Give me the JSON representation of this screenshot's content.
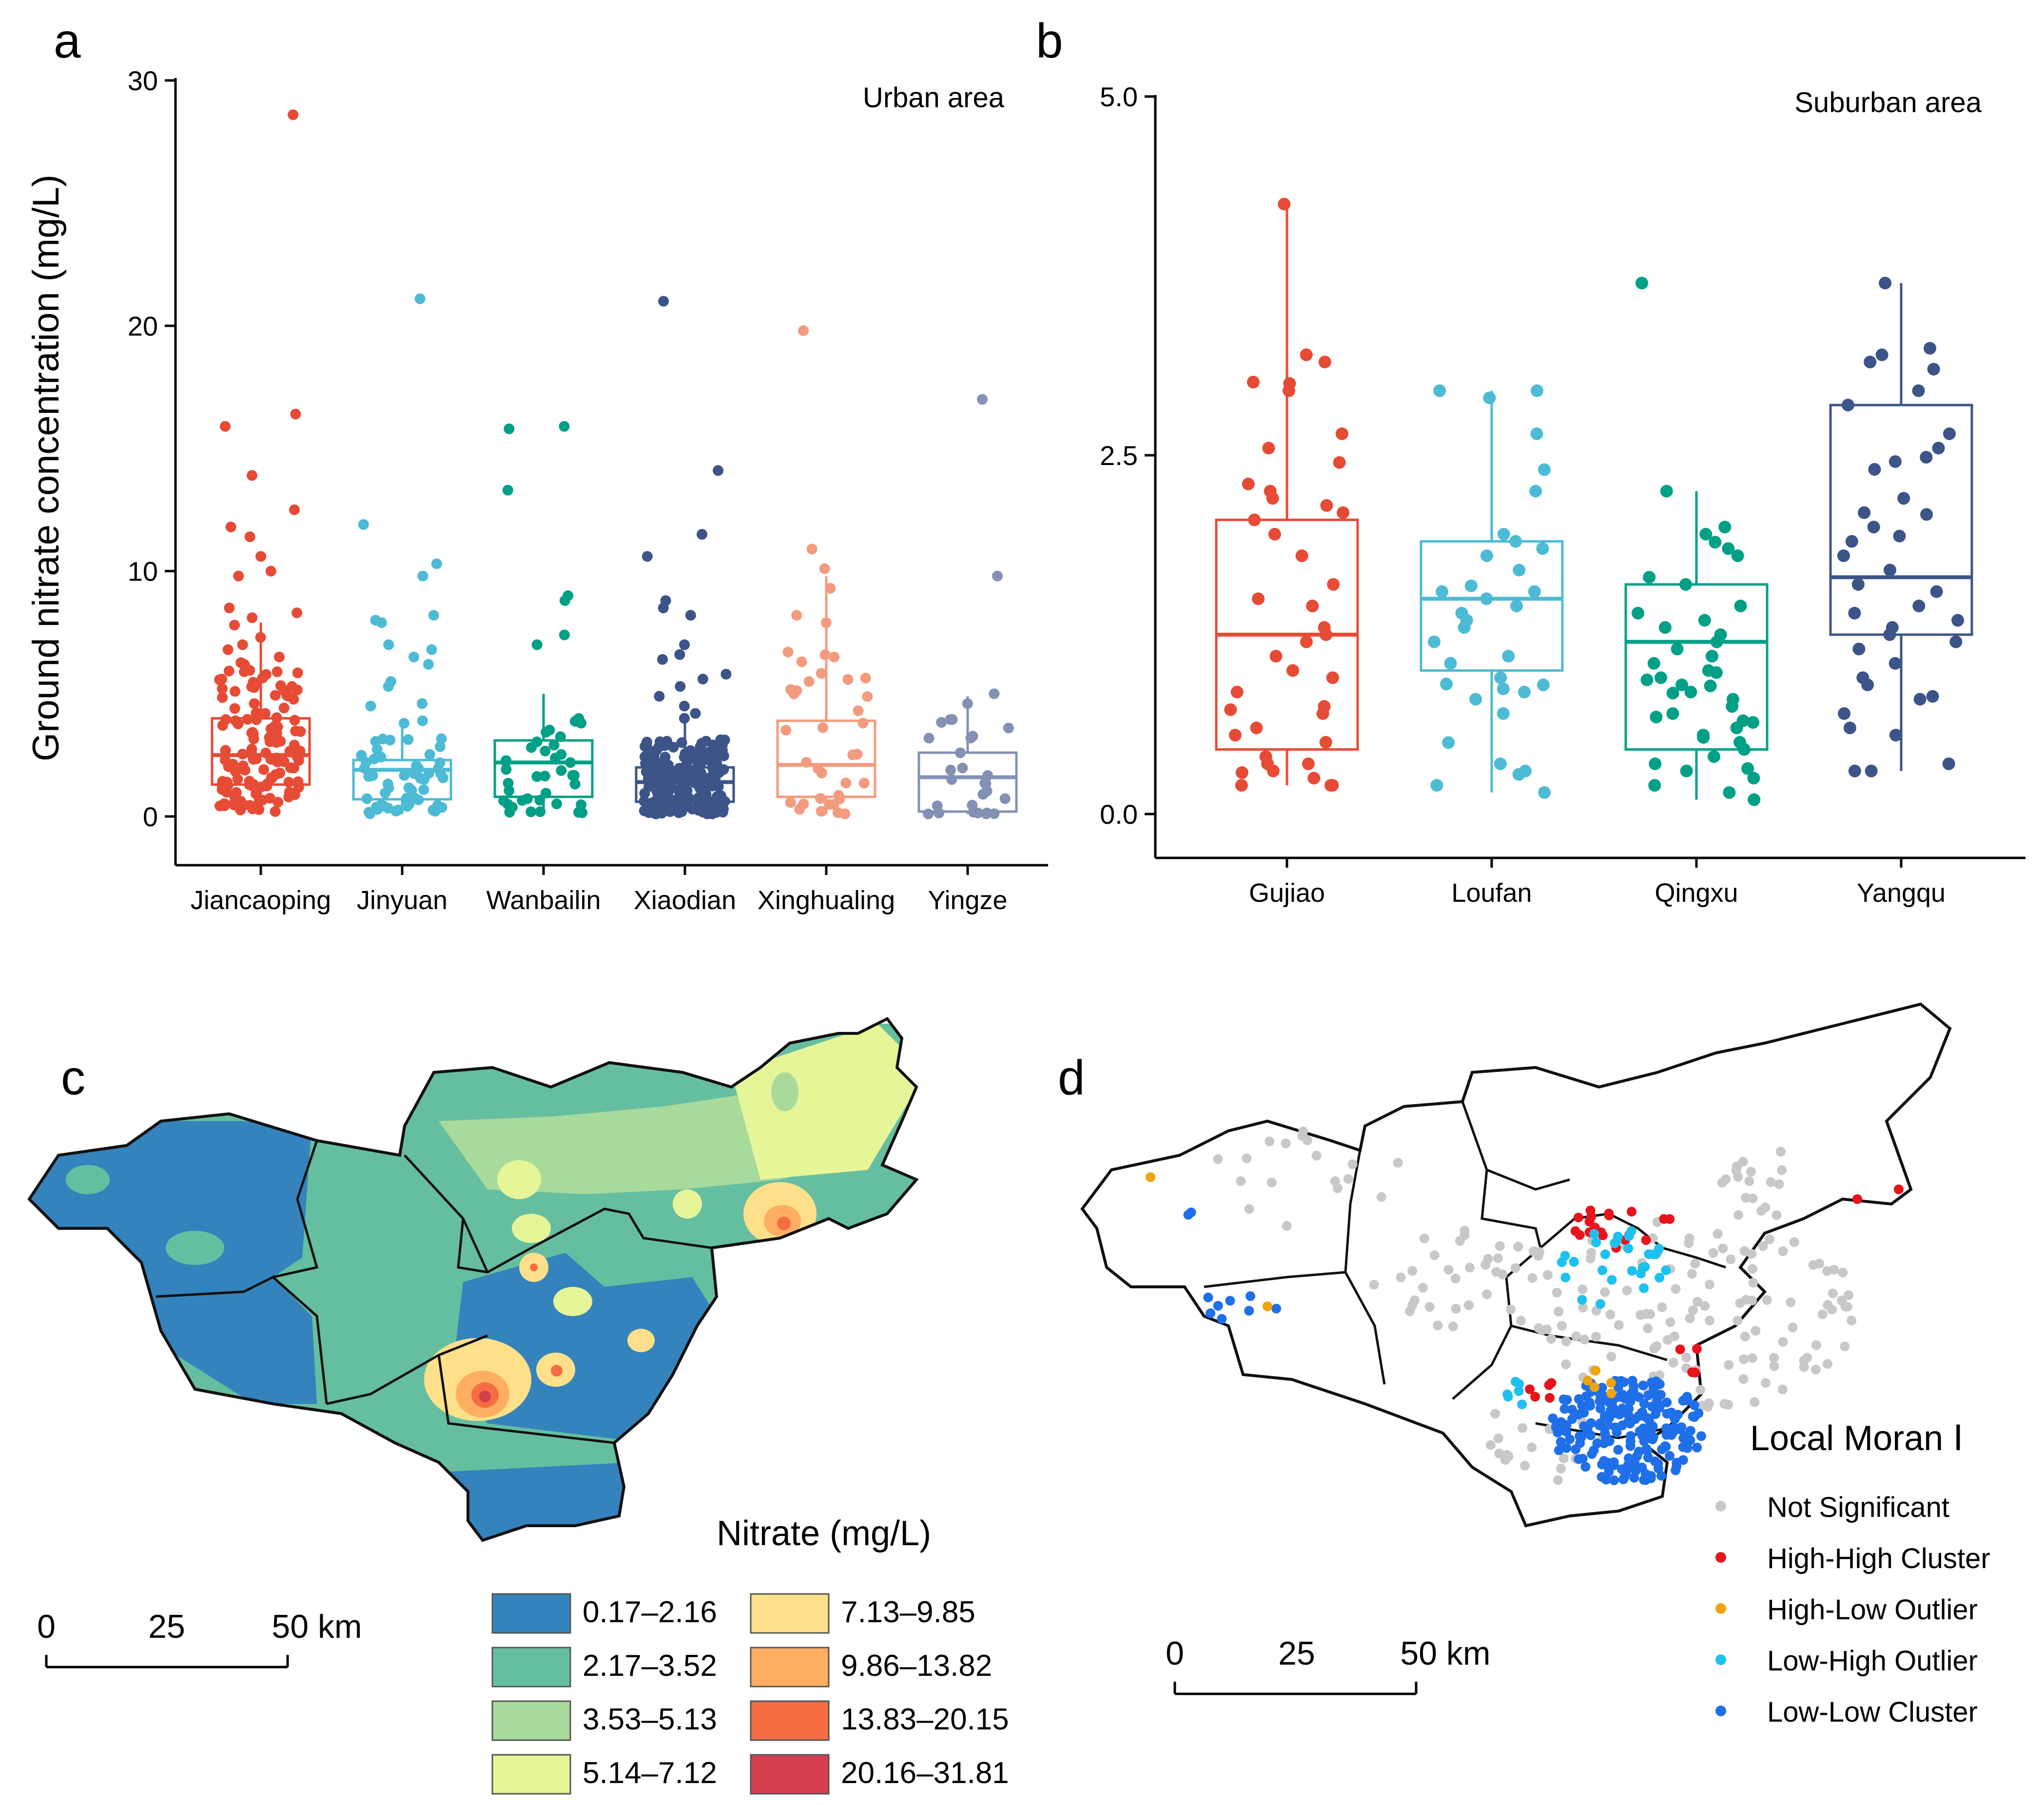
{
  "panels": {
    "a": "a",
    "b": "b",
    "c": "c",
    "d": "d"
  },
  "colors": {
    "Jiancaoping": "#E64B35",
    "Jinyuan": "#4DBBD5",
    "Wanbailin": "#00A087",
    "Xiaodian": "#3C5488",
    "Xinghualing": "#F39B7F",
    "Yingze": "#8491B4",
    "Gujiao": "#E64B35",
    "Loufan": "#4DBBD5",
    "Qingxu": "#00A087",
    "Yangqu": "#3C5488"
  },
  "chart_data": [
    {
      "type": "box",
      "panel": "a",
      "title": "Urban area",
      "ylabel": "Ground nitrate concentration (mg/L)",
      "ylim": [
        -2,
        30
      ],
      "yticks": [
        "0",
        "10",
        "20",
        "30"
      ],
      "categories": [
        "Jiancaoping",
        "Jinyuan",
        "Wanbailin",
        "Xiaodian",
        "Xinghualing",
        "Yingze"
      ],
      "boxes": [
        {
          "name": "Jiancaoping",
          "min": 0.1,
          "q1": 1.3,
          "median": 2.5,
          "q3": 4.0,
          "max": 7.9,
          "n": 150,
          "points": [
            28.6,
            16.4,
            15.9,
            13.9,
            12.5,
            11.8,
            11.4,
            10.6,
            10.0,
            9.8,
            8.5,
            8.3,
            8.1,
            7.8,
            7.3,
            7.0,
            6.8,
            6.5,
            6.2,
            5.9,
            5.6,
            5.3,
            5.1,
            4.9,
            4.6,
            4.4,
            4.2
          ]
        },
        {
          "name": "Jinyuan",
          "min": 0.1,
          "q1": 0.7,
          "median": 1.9,
          "q3": 2.3,
          "max": 3.8,
          "n": 70,
          "points": [
            21.1,
            11.9,
            10.3,
            9.8,
            8.2,
            8.0,
            7.9,
            7.0,
            6.8,
            6.5,
            6.2,
            5.5,
            5.3,
            4.6,
            4.5,
            3.9,
            3.8
          ]
        },
        {
          "name": "Wanbailin",
          "min": 0.1,
          "q1": 0.8,
          "median": 2.2,
          "q3": 3.1,
          "max": 5.0,
          "n": 45,
          "points": [
            15.9,
            15.8,
            13.3,
            9.0,
            8.8,
            7.4,
            7.0
          ]
        },
        {
          "name": "Xiaodian",
          "min": 0.1,
          "q1": 0.6,
          "median": 1.4,
          "q3": 2.0,
          "max": 3.9,
          "n": 210,
          "points": [
            21.0,
            14.1,
            11.5,
            10.6,
            8.8,
            8.5,
            8.2,
            7.0,
            6.6,
            6.4,
            5.8,
            5.6,
            5.3,
            4.9,
            4.5,
            4.2,
            4.0
          ]
        },
        {
          "name": "Xinghualing",
          "min": 0.1,
          "q1": 0.8,
          "median": 2.1,
          "q3": 3.9,
          "max": 9.8,
          "n": 40,
          "points": [
            19.8,
            10.9,
            10.1,
            9.3,
            8.2,
            7.9,
            6.7,
            6.5,
            5.5,
            5.0
          ]
        },
        {
          "name": "Yingze",
          "min": 0.1,
          "q1": 0.2,
          "median": 1.6,
          "q3": 2.6,
          "max": 4.9,
          "n": 30,
          "points": [
            17.0,
            9.8,
            5.0,
            4.6
          ]
        }
      ]
    },
    {
      "type": "box",
      "panel": "b",
      "title": "Suburban area",
      "ylim": [
        -0.3,
        5.0
      ],
      "yticks": [
        "0.0",
        "2.5",
        "5.0"
      ],
      "categories": [
        "Gujiao",
        "Loufan",
        "Qingxu",
        "Yangqu"
      ],
      "boxes": [
        {
          "name": "Gujiao",
          "min": 0.2,
          "q1": 0.45,
          "median": 1.25,
          "q3": 2.05,
          "max": 4.25,
          "n": 42,
          "points": [
            4.25,
            3.2,
            3.15,
            3.0,
            2.95,
            2.65,
            2.55,
            2.45,
            2.3,
            2.25,
            2.2,
            2.15,
            2.1,
            2.05,
            1.95,
            1.8,
            1.6,
            1.5,
            1.45,
            1.3,
            1.25,
            1.2,
            1.1,
            1.0,
            0.95,
            0.85,
            0.75,
            0.7,
            0.6,
            0.55,
            0.5,
            0.4,
            0.35,
            0.3,
            0.25,
            0.2,
            0.2,
            0.2
          ]
        },
        {
          "name": "Loufan",
          "min": 0.15,
          "q1": 1.0,
          "median": 1.5,
          "q3": 1.9,
          "max": 2.95,
          "n": 35,
          "points": [
            2.95,
            2.95,
            2.9,
            2.65,
            2.4,
            2.25,
            1.95,
            1.9,
            1.85,
            1.8,
            1.7,
            1.55,
            1.55,
            1.5,
            1.45,
            1.4,
            1.35,
            1.3,
            1.2,
            1.1,
            1.05,
            0.95,
            0.9,
            0.85,
            0.8,
            0.7,
            0.35,
            0.3,
            0.2,
            0.15
          ]
        },
        {
          "name": "Qingxu",
          "min": 0.1,
          "q1": 0.45,
          "median": 1.2,
          "q3": 1.6,
          "max": 2.25,
          "n": 45,
          "points": [
            3.7,
            2.25,
            2.0,
            1.95,
            1.85,
            1.8,
            1.65,
            1.6,
            1.45,
            1.4,
            1.35,
            1.3,
            1.25,
            1.2,
            1.15,
            1.1,
            1.05,
            1.0,
            0.95,
            0.9,
            0.85,
            0.8,
            0.75,
            0.7,
            0.65,
            0.6,
            0.55,
            0.5,
            0.45,
            0.4,
            0.35,
            0.3,
            0.25,
            0.2,
            0.15,
            0.1
          ]
        },
        {
          "name": "Yangqu",
          "min": 0.3,
          "q1": 1.25,
          "median": 1.65,
          "q3": 2.85,
          "max": 3.7,
          "n": 40,
          "points": [
            3.7,
            3.2,
            3.15,
            3.1,
            2.95,
            2.85,
            2.65,
            2.55,
            2.2,
            2.1,
            2.0,
            1.9,
            1.8,
            1.7,
            1.6,
            1.55,
            1.45,
            1.4,
            1.35,
            1.3,
            1.25,
            1.2,
            1.15,
            1.05,
            0.95,
            0.9,
            0.8,
            0.7,
            0.6,
            0.55,
            0.35,
            0.3,
            0.3
          ]
        }
      ]
    },
    {
      "type": "map",
      "panel": "c",
      "legend_title": "Nitrate (mg/L)",
      "classes": [
        {
          "label": "0.17–2.16",
          "color": "#3483BC"
        },
        {
          "label": "2.17–3.52",
          "color": "#66BEA1"
        },
        {
          "label": "3.53–5.13",
          "color": "#A8DA9C"
        },
        {
          "label": "5.14–7.12",
          "color": "#E6F598"
        },
        {
          "label": "7.13–9.85",
          "color": "#FEE08B"
        },
        {
          "label": "9.86–13.82",
          "color": "#FDAE61"
        },
        {
          "label": "13.83–20.15",
          "color": "#F46D43"
        },
        {
          "label": "20.16–31.81",
          "color": "#D53E4F"
        }
      ],
      "scale": {
        "ticks": [
          "0",
          "25",
          "50 km"
        ]
      }
    },
    {
      "type": "map",
      "panel": "d",
      "legend_title": "Local Moran Ⅰ",
      "classes": [
        {
          "label": "Not Significant",
          "color": "#C8C8C8"
        },
        {
          "label": "High-High Cluster",
          "color": "#E8141B"
        },
        {
          "label": "High-Low Outlier",
          "color": "#F2A30F"
        },
        {
          "label": "Low-High Outlier",
          "color": "#1EC0F0"
        },
        {
          "label": "Low-Low Cluster",
          "color": "#1E6FE8"
        }
      ],
      "scale": {
        "ticks": [
          "0",
          "25",
          "50 km"
        ]
      }
    }
  ]
}
